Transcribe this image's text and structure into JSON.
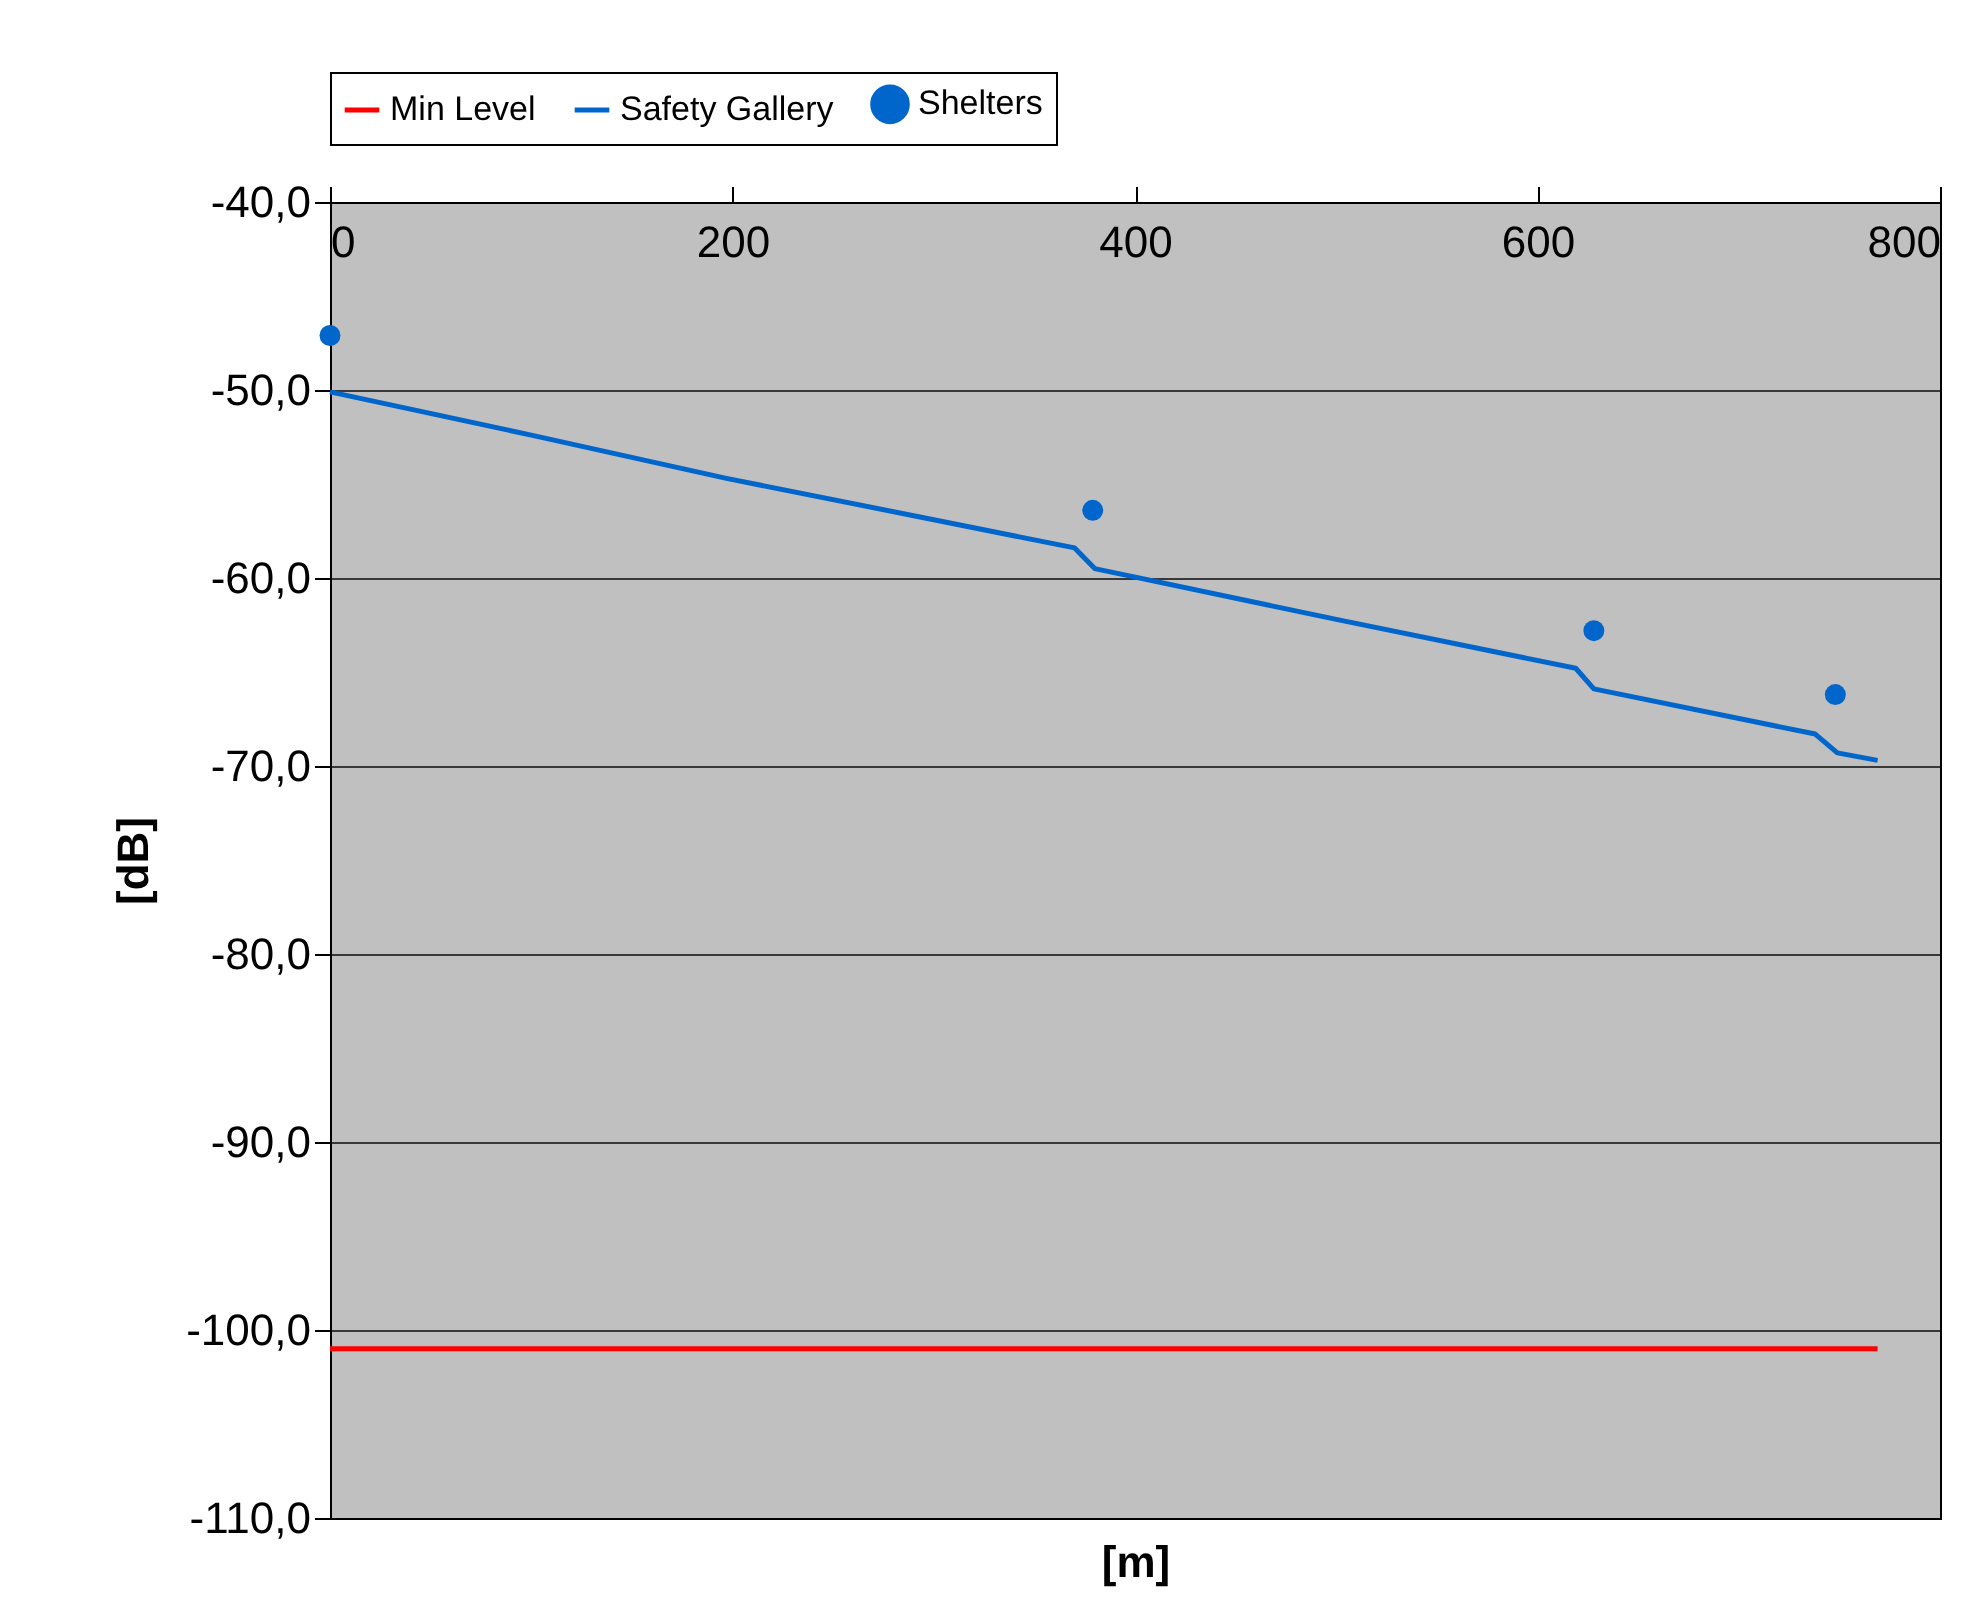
{
  "chart_data": {
    "type": "line",
    "xlabel": "[m]",
    "ylabel": "[dB]",
    "series": [
      {
        "name": "Min Level",
        "color": "#ff0000",
        "x": [
          0,
          769
        ],
        "values": [
          -101.0,
          -101.0
        ]
      },
      {
        "name": "Safety Gallery",
        "color": "#0066cc",
        "x": [
          0,
          100,
          197,
          300,
          370,
          380,
          500,
          619,
          628,
          738,
          749,
          769
        ],
        "values": [
          -50.1,
          -52.4,
          -54.7,
          -56.9,
          -58.4,
          -59.5,
          -62.2,
          -64.8,
          -65.9,
          -68.3,
          -69.3,
          -69.7
        ]
      },
      {
        "name": "Shelters",
        "color": "#0066cc",
        "type": "scatter",
        "x": [
          0,
          379,
          628,
          748
        ],
        "values": [
          -47.1,
          -56.4,
          -62.8,
          -66.2
        ]
      }
    ],
    "xlim": [
      0,
      800
    ],
    "xticks": [
      0,
      200,
      400,
      600,
      800
    ],
    "ylim": [
      -110,
      -40
    ],
    "yticks": [
      {
        "value": -110,
        "label": "-110,0"
      },
      {
        "value": -100,
        "label": "-100,0"
      },
      {
        "value": -90,
        "label": "-90,0"
      },
      {
        "value": -80,
        "label": "-80,0"
      },
      {
        "value": -70,
        "label": "-70,0"
      },
      {
        "value": -60,
        "label": "-60,0"
      },
      {
        "value": -50,
        "label": "-50,0"
      },
      {
        "value": -40,
        "label": "-40,0"
      }
    ],
    "grid": "y",
    "legend": "top"
  }
}
